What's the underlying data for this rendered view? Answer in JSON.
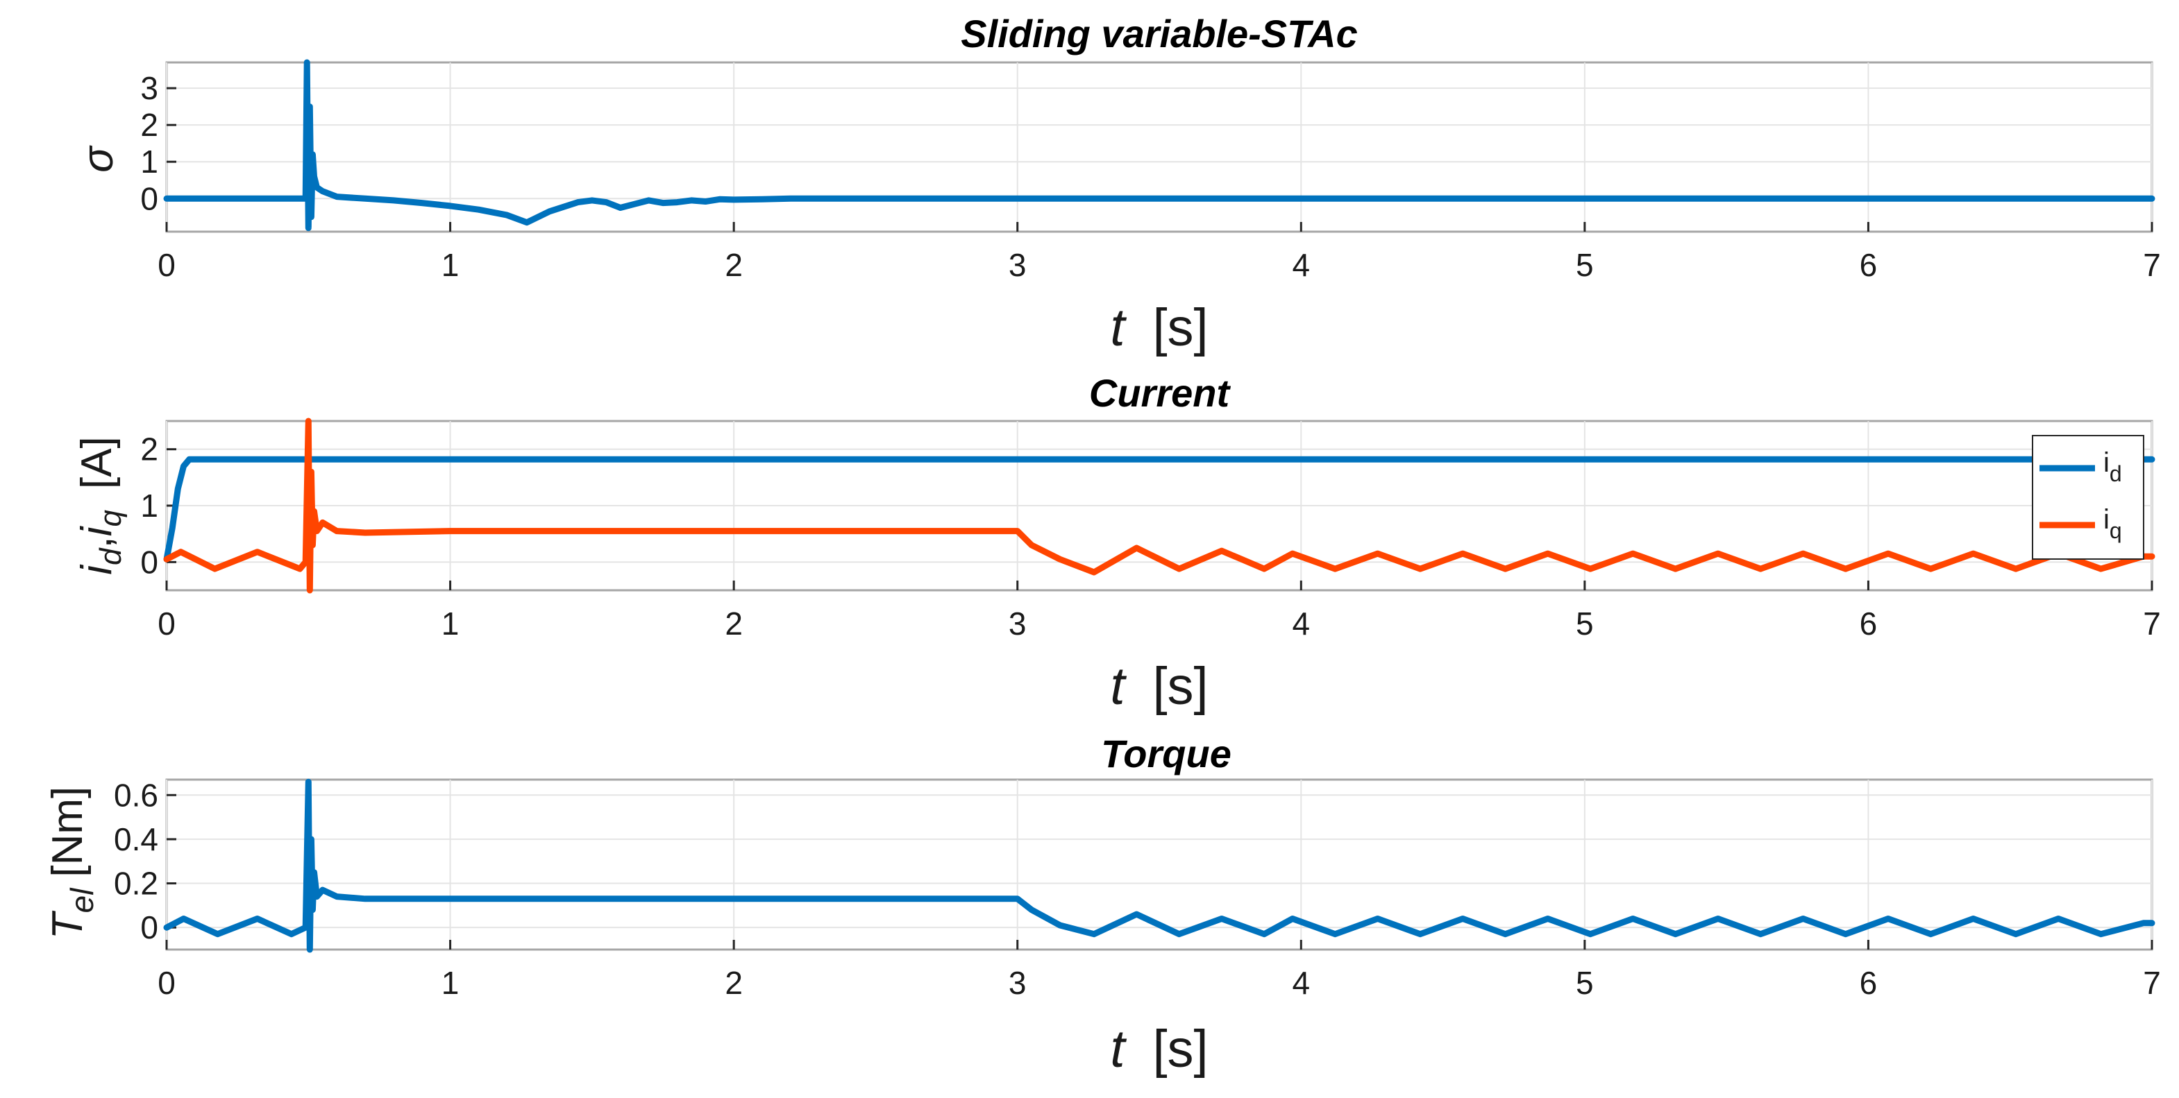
{
  "colors": {
    "blue": "#0072BD",
    "orange": "#FF4500"
  },
  "chart_data": [
    {
      "type": "line",
      "title": "Sliding variable-STAc",
      "xlabel_italic": "t",
      "xlabel_unit": "[s]",
      "ylabel": "σ",
      "xlim": [
        0,
        7
      ],
      "ylim": [
        -0.9,
        3.7
      ],
      "xticks": [
        0,
        1,
        2,
        3,
        4,
        5,
        6,
        7
      ],
      "yticks": [
        0,
        1,
        2,
        3
      ],
      "grid": true,
      "series": [
        {
          "name": "sigma",
          "color": "#0072BD",
          "x": [
            0,
            0.49,
            0.495,
            0.5,
            0.505,
            0.51,
            0.515,
            0.52,
            0.53,
            0.55,
            0.6,
            0.7,
            0.8,
            0.9,
            1.0,
            1.1,
            1.2,
            1.27,
            1.35,
            1.45,
            1.5,
            1.55,
            1.6,
            1.65,
            1.7,
            1.75,
            1.8,
            1.85,
            1.9,
            1.95,
            2.0,
            2.1,
            2.2,
            2.5,
            3.0,
            4.0,
            5.0,
            6.0,
            7.0
          ],
          "y": [
            0,
            0,
            3.7,
            -0.8,
            2.5,
            -0.5,
            1.2,
            0.6,
            0.3,
            0.2,
            0.05,
            0,
            -0.05,
            -0.12,
            -0.2,
            -0.3,
            -0.45,
            -0.65,
            -0.35,
            -0.1,
            -0.05,
            -0.1,
            -0.25,
            -0.15,
            -0.05,
            -0.12,
            -0.1,
            -0.05,
            -0.08,
            -0.02,
            -0.03,
            -0.02,
            0,
            0,
            0,
            0,
            0,
            0,
            0
          ]
        }
      ]
    },
    {
      "type": "line",
      "title": "Current",
      "xlabel_italic": "t",
      "xlabel_unit": "[s]",
      "ylabel_main": "i",
      "ylabel_sub_d": "d",
      "ylabel_sep": ",",
      "ylabel_sub_q": "q",
      "ylabel_unit": "[A]",
      "xlim": [
        0,
        7
      ],
      "ylim": [
        -0.5,
        2.5
      ],
      "xticks": [
        0,
        1,
        2,
        3,
        4,
        5,
        6,
        7
      ],
      "yticks": [
        0,
        1,
        2
      ],
      "grid": true,
      "legend": {
        "placement": "top-right",
        "entries": [
          {
            "main": "i",
            "sub": "d",
            "color": "#0072BD"
          },
          {
            "main": "i",
            "sub": "q",
            "color": "#FF4500"
          }
        ]
      },
      "series": [
        {
          "name": "i_d",
          "color": "#0072BD",
          "x": [
            0,
            0.02,
            0.04,
            0.06,
            0.08,
            0.1,
            0.15,
            0.5,
            1,
            2,
            3,
            4,
            5,
            6,
            7
          ],
          "y": [
            0.05,
            0.6,
            1.3,
            1.7,
            1.82,
            1.82,
            1.82,
            1.82,
            1.82,
            1.82,
            1.82,
            1.82,
            1.82,
            1.82,
            1.82
          ]
        },
        {
          "name": "i_q",
          "color": "#FF4500",
          "x": [
            0,
            0.05,
            0.17,
            0.32,
            0.47,
            0.49,
            0.5,
            0.505,
            0.51,
            0.515,
            0.52,
            0.53,
            0.55,
            0.6,
            0.7,
            1.0,
            2.0,
            3.0,
            3.05,
            3.15,
            3.27,
            3.42,
            3.57,
            3.72,
            3.87,
            3.97,
            4.12,
            4.27,
            4.42,
            4.57,
            4.72,
            4.87,
            5.02,
            5.17,
            5.32,
            5.47,
            5.62,
            5.77,
            5.92,
            6.07,
            6.22,
            6.37,
            6.52,
            6.67,
            6.82,
            6.97,
            7.0
          ],
          "y": [
            0.05,
            0.18,
            -0.12,
            0.18,
            -0.12,
            0.0,
            2.5,
            -0.5,
            1.6,
            0.3,
            0.9,
            0.55,
            0.7,
            0.55,
            0.52,
            0.55,
            0.55,
            0.55,
            0.3,
            0.05,
            -0.18,
            0.25,
            -0.12,
            0.2,
            -0.12,
            0.15,
            -0.12,
            0.15,
            -0.12,
            0.15,
            -0.12,
            0.15,
            -0.12,
            0.15,
            -0.12,
            0.15,
            -0.12,
            0.15,
            -0.12,
            0.15,
            -0.12,
            0.15,
            -0.12,
            0.15,
            -0.12,
            0.1,
            0.1
          ]
        }
      ]
    },
    {
      "type": "line",
      "title": "Torque",
      "xlabel_italic": "t",
      "xlabel_unit": "[s]",
      "ylabel_main": "T",
      "ylabel_sub": "el",
      "ylabel_unit": "[Nm]",
      "xlim": [
        0,
        7
      ],
      "ylim": [
        -0.1,
        0.67
      ],
      "xticks": [
        0,
        1,
        2,
        3,
        4,
        5,
        6,
        7
      ],
      "yticks": [
        0,
        0.2,
        0.4,
        0.6
      ],
      "grid": true,
      "series": [
        {
          "name": "T_el",
          "color": "#0072BD",
          "x": [
            0,
            0.06,
            0.18,
            0.32,
            0.44,
            0.49,
            0.5,
            0.505,
            0.51,
            0.515,
            0.52,
            0.53,
            0.55,
            0.6,
            0.7,
            1.0,
            2.0,
            3.0,
            3.05,
            3.15,
            3.27,
            3.42,
            3.57,
            3.72,
            3.87,
            3.97,
            4.12,
            4.27,
            4.42,
            4.57,
            4.72,
            4.87,
            5.02,
            5.17,
            5.32,
            5.47,
            5.62,
            5.77,
            5.92,
            6.07,
            6.22,
            6.37,
            6.52,
            6.67,
            6.82,
            6.97,
            7.0
          ],
          "y": [
            0.0,
            0.04,
            -0.03,
            0.04,
            -0.03,
            0.0,
            0.66,
            -0.1,
            0.4,
            0.08,
            0.25,
            0.14,
            0.17,
            0.14,
            0.13,
            0.13,
            0.13,
            0.13,
            0.08,
            0.01,
            -0.03,
            0.06,
            -0.03,
            0.04,
            -0.03,
            0.04,
            -0.03,
            0.04,
            -0.03,
            0.04,
            -0.03,
            0.04,
            -0.03,
            0.04,
            -0.03,
            0.04,
            -0.03,
            0.04,
            -0.03,
            0.04,
            -0.03,
            0.04,
            -0.03,
            0.04,
            -0.03,
            0.02,
            0.02
          ]
        }
      ]
    }
  ]
}
